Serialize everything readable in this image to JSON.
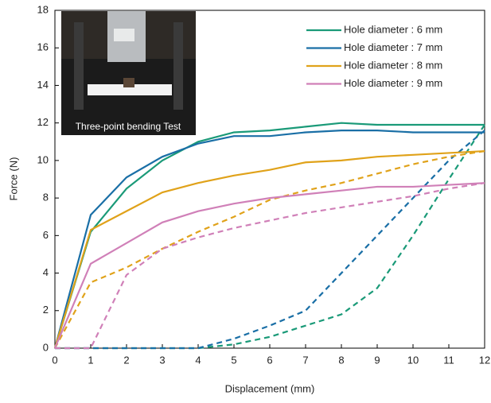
{
  "chart_data": {
    "type": "line",
    "x_label": "Displacement (mm)",
    "y_label": "Force (N)",
    "inset_label": "Three-point bending Test",
    "x": [
      0,
      1,
      2,
      3,
      4,
      5,
      6,
      7,
      8,
      9,
      10,
      11,
      12
    ],
    "xlim": [
      0,
      12
    ],
    "xticks": [
      0,
      1,
      2,
      3,
      4,
      5,
      6,
      7,
      8,
      9,
      10,
      11,
      12
    ],
    "ylim": [
      0,
      18
    ],
    "yticks": [
      0,
      2,
      4,
      6,
      8,
      10,
      12,
      14,
      16,
      18
    ],
    "legend": "upper right",
    "series": [
      {
        "name": "Hole diameter : 6 mm",
        "color": "#1a9a78",
        "values": [
          0,
          6.2,
          8.5,
          10,
          11,
          11.5,
          11.6,
          11.8,
          12,
          11.9,
          11.9,
          11.9,
          11.9
        ],
        "dashed_values": [
          0,
          0,
          0,
          0,
          0,
          0.2,
          0.6,
          1.2,
          1.8,
          3.2,
          6,
          9,
          11.9
        ]
      },
      {
        "name": "Hole diameter : 7 mm",
        "color": "#1a6fa6",
        "values": [
          0,
          7.1,
          9.1,
          10.2,
          10.9,
          11.3,
          11.3,
          11.5,
          11.6,
          11.6,
          11.5,
          11.5,
          11.5
        ],
        "dashed_values": [
          0,
          0,
          0,
          0,
          0,
          0.5,
          1.2,
          2,
          4,
          6,
          8,
          10,
          11.6
        ]
      },
      {
        "name": "Hole diameter : 8 mm",
        "color": "#e0a21a",
        "values": [
          0,
          6.3,
          7.3,
          8.3,
          8.8,
          9.2,
          9.5,
          9.9,
          10,
          10.2,
          10.3,
          10.4,
          10.5
        ],
        "dashed_values": [
          0,
          3.5,
          4.3,
          5.3,
          6.2,
          7,
          7.9,
          8.4,
          8.8,
          9.3,
          9.8,
          10.2,
          10.5
        ]
      },
      {
        "name": "Hole diameter : 9 mm",
        "color": "#d080b8",
        "values": [
          0,
          4.5,
          5.6,
          6.7,
          7.3,
          7.7,
          8.0,
          8.2,
          8.4,
          8.6,
          8.6,
          8.7,
          8.8
        ],
        "dashed_values": [
          0,
          0,
          3.9,
          5.3,
          5.9,
          6.4,
          6.8,
          7.2,
          7.5,
          7.8,
          8.1,
          8.5,
          8.8
        ]
      }
    ]
  }
}
